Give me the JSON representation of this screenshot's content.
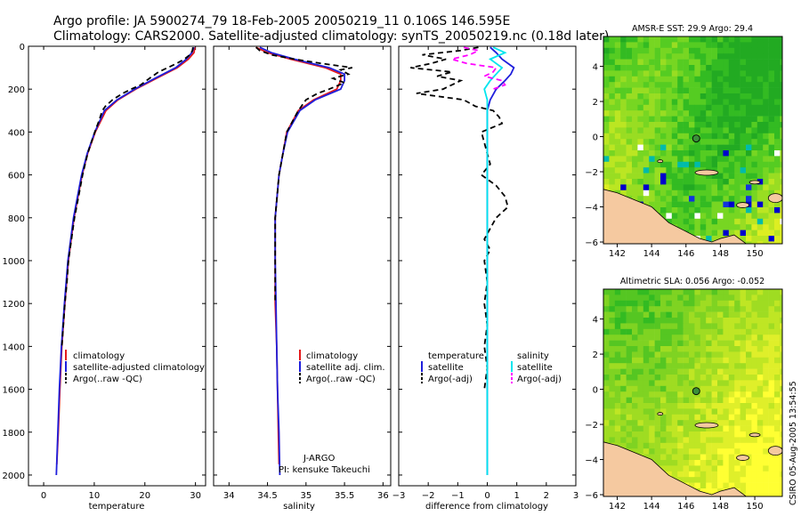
{
  "header": {
    "line1": "Argo profile: JA 5900274_79 18-Feb-2005 20050219_11 0.106S 146.595E",
    "line2": "Climatology: CARS2000. Satellite-adjusted climatology: synTS_20050219.nc (0.18d later)"
  },
  "footer": {
    "stamp": "CSIRO 05-Aug-2005 13:54:55"
  },
  "chart_data": [
    {
      "type": "line",
      "title": "",
      "xlabel": "temperature",
      "ylabel": "",
      "xlim": [
        -3,
        32
      ],
      "ylim": [
        0,
        2050
      ],
      "y_reversed": true,
      "xticks": [
        0,
        10,
        20,
        30
      ],
      "yticks": [
        0,
        200,
        400,
        600,
        800,
        1000,
        1200,
        1400,
        1600,
        1800,
        2000
      ],
      "legend": [
        "climatology",
        "satellite-adjusted climatology",
        "Argo(..raw -QC)"
      ],
      "series": [
        {
          "name": "climatology",
          "color": "#e41a1c",
          "dash": "none",
          "depth": [
            5,
            30,
            60,
            100,
            150,
            200,
            250,
            300,
            400,
            500,
            600,
            800,
            1000,
            1200,
            1400,
            1600,
            1800,
            1950
          ],
          "values": [
            29.9,
            29.7,
            28.6,
            26.4,
            22.3,
            18.2,
            14.7,
            12.3,
            10.2,
            8.7,
            7.6,
            6.0,
            4.9,
            4.2,
            3.6,
            3.2,
            2.9,
            2.6
          ]
        },
        {
          "name": "satellite-adjusted climatology",
          "color": "#1f1fdc",
          "dash": "none",
          "depth": [
            5,
            30,
            60,
            100,
            150,
            200,
            250,
            300,
            400,
            500,
            600,
            800,
            1000,
            1200,
            1400,
            1600,
            1800,
            2000
          ],
          "values": [
            29.7,
            29.3,
            28.2,
            26.1,
            22.0,
            18.0,
            14.5,
            12.0,
            10.1,
            8.6,
            7.5,
            5.9,
            4.8,
            4.1,
            3.5,
            3.1,
            2.8,
            2.5
          ]
        },
        {
          "name": "Argo(..raw -QC)",
          "color": "#000000",
          "dash": "6,4",
          "depth": [
            5,
            20,
            40,
            60,
            80,
            100,
            120,
            150,
            180,
            200,
            220,
            250,
            280,
            300,
            350,
            400,
            450,
            500,
            600,
            700,
            800,
            900,
            1000,
            1100,
            1200,
            1400
          ],
          "values": [
            29.5,
            29.4,
            28.9,
            27.8,
            26.3,
            24.5,
            22.7,
            20.9,
            19.2,
            17.3,
            15.6,
            13.6,
            12.2,
            11.6,
            10.9,
            10.1,
            9.4,
            8.7,
            7.7,
            6.9,
            6.1,
            5.5,
            4.9,
            4.6,
            4.2,
            3.6
          ]
        }
      ]
    },
    {
      "type": "line",
      "title": "",
      "xlabel": "salinity",
      "ylabel": "",
      "xlim": [
        33.8,
        36.1
      ],
      "ylim": [
        0,
        2050
      ],
      "y_reversed": true,
      "xticks": [
        34,
        34.5,
        35,
        35.5,
        36
      ],
      "legend": [
        "climatology",
        "satellite adj. clim.",
        "Argo(..raw -QC)"
      ],
      "annotations": [
        "J-ARGO",
        "PI: kensuke Takeuchi"
      ],
      "series": [
        {
          "name": "climatology",
          "color": "#e41a1c",
          "dash": "none",
          "depth": [
            5,
            30,
            60,
            100,
            130,
            160,
            200,
            250,
            300,
            400,
            500,
            600,
            800,
            1000,
            1200,
            1400,
            1600,
            1800,
            1950
          ],
          "values": [
            34.35,
            34.5,
            34.8,
            35.25,
            35.45,
            35.45,
            35.4,
            35.1,
            34.9,
            34.75,
            34.7,
            34.65,
            34.6,
            34.6,
            34.6,
            34.62,
            34.63,
            34.64,
            34.65
          ]
        },
        {
          "name": "satellite adj. clim.",
          "color": "#1f1fdc",
          "dash": "none",
          "depth": [
            5,
            30,
            60,
            100,
            130,
            160,
            200,
            250,
            300,
            400,
            500,
            600,
            800,
            1000,
            1200,
            1400,
            1600,
            1800,
            2000
          ],
          "values": [
            34.4,
            34.55,
            34.85,
            35.3,
            35.5,
            35.5,
            35.45,
            35.12,
            34.92,
            34.76,
            34.7,
            34.65,
            34.6,
            34.6,
            34.61,
            34.62,
            34.63,
            34.65,
            34.66
          ]
        },
        {
          "name": "Argo(..raw -QC)",
          "color": "#000000",
          "dash": "6,4",
          "depth": [
            5,
            20,
            40,
            60,
            80,
            100,
            110,
            130,
            150,
            170,
            200,
            220,
            250,
            300,
            400,
            500,
            600,
            800,
            1000,
            1200
          ],
          "values": [
            34.35,
            34.4,
            34.55,
            34.85,
            35.2,
            35.6,
            35.45,
            35.55,
            35.35,
            35.5,
            35.3,
            35.15,
            35.0,
            34.9,
            34.75,
            34.7,
            34.65,
            34.6,
            34.6,
            34.6
          ]
        }
      ]
    },
    {
      "type": "line",
      "title": "",
      "xlabel": "difference from climatology",
      "ylabel": "",
      "xlim": [
        -3,
        3
      ],
      "ylim": [
        0,
        2050
      ],
      "y_reversed": true,
      "xticks": [
        -3,
        -2,
        -1,
        0,
        1,
        2,
        3
      ],
      "legend_left": [
        "temperature",
        "satellite",
        "Argo(-adj)"
      ],
      "legend_right": [
        "salinity",
        "satellite",
        "Argo(-adj)"
      ],
      "series": [
        {
          "name": "temperature satellite",
          "color": "#1f1fdc",
          "dash": "none",
          "depth": [
            5,
            30,
            60,
            100,
            130,
            160,
            200,
            250,
            300,
            400,
            600,
            1000,
            2000
          ],
          "values": [
            0.1,
            0.3,
            0.5,
            0.9,
            0.8,
            0.6,
            0.3,
            0.1,
            0.0,
            0.0,
            0.0,
            0.0,
            0.0
          ]
        },
        {
          "name": "temperature Argo(-adj)",
          "color": "#000000",
          "dash": "6,4",
          "depth": [
            5,
            20,
            40,
            60,
            80,
            100,
            120,
            140,
            160,
            180,
            200,
            220,
            250,
            280,
            300,
            330,
            360,
            400,
            450,
            500,
            550,
            600,
            650,
            700,
            750,
            800,
            850,
            900,
            950,
            1000,
            1100,
            1200,
            1300,
            1400,
            1500,
            1600
          ],
          "values": [
            -0.3,
            -0.9,
            -2.2,
            -1.4,
            -1.9,
            -2.6,
            -1.2,
            -1.7,
            -0.9,
            -1.2,
            -1.5,
            -2.4,
            -0.8,
            -0.4,
            0.2,
            0.4,
            0.5,
            -0.2,
            -0.1,
            0.0,
            0.1,
            -0.2,
            0.3,
            0.6,
            0.7,
            0.3,
            0.1,
            -0.1,
            0.1,
            -0.1,
            0.0,
            -0.1,
            0.0,
            -0.1,
            0.0,
            -0.1
          ]
        },
        {
          "name": "salinity satellite",
          "color": "#00e5ee",
          "dash": "none",
          "depth": [
            5,
            30,
            60,
            100,
            130,
            160,
            200,
            250,
            300,
            400,
            600,
            1000,
            2000
          ],
          "values": [
            0.2,
            0.6,
            0.1,
            0.5,
            0.3,
            0.1,
            -0.1,
            0.0,
            0.0,
            0.0,
            0.0,
            0.0,
            0.0
          ]
        },
        {
          "name": "salinity Argo(-adj)",
          "color": "#ff00ff",
          "dash": "6,4",
          "depth": [
            5,
            20,
            40,
            60,
            80,
            100,
            120,
            140,
            160,
            180,
            200
          ],
          "values": [
            -0.8,
            -0.3,
            -0.6,
            -1.2,
            -0.7,
            0.3,
            0.2,
            -0.1,
            0.5,
            0.6,
            0.2
          ]
        }
      ]
    },
    {
      "type": "heatmap",
      "title": "AMSR-E SST: 29.9 Argo: 29.4",
      "xlim": [
        141.2,
        151.6
      ],
      "ylim": [
        -6.1,
        5.7
      ],
      "xticks": [
        142,
        144,
        146,
        148,
        150
      ],
      "yticks": [
        -6,
        -4,
        -2,
        0,
        2,
        4
      ],
      "marker": {
        "lon": 146.595,
        "lat": -0.106
      }
    },
    {
      "type": "heatmap",
      "title": "Altimetric SLA: 0.056 Argo: -0.052",
      "xlim": [
        141.2,
        151.6
      ],
      "ylim": [
        -6.1,
        5.7
      ],
      "xticks": [
        142,
        144,
        146,
        148,
        150
      ],
      "yticks": [
        -6,
        -4,
        -2,
        0,
        2,
        4
      ],
      "marker": {
        "lon": 146.595,
        "lat": -0.106
      }
    }
  ]
}
